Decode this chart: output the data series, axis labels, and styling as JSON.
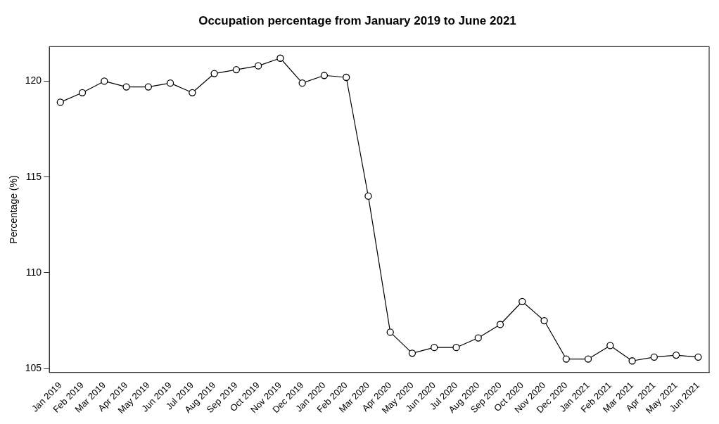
{
  "chart_data": {
    "type": "line",
    "title": "Occupation percentage from January 2019 to June 2021",
    "ylabel": "Percentage (%)",
    "categories": [
      "Jan 2019",
      "Feb 2019",
      "Mar 2019",
      "Apr 2019",
      "May 2019",
      "Jun 2019",
      "Jul 2019",
      "Aug 2019",
      "Sep 2019",
      "Oct 2019",
      "Nov 2019",
      "Dec 2019",
      "Jan 2020",
      "Feb 2020",
      "Mar 2020",
      "Apr 2020",
      "May 2020",
      "Jun 2020",
      "Jul 2020",
      "Aug 2020",
      "Sep 2020",
      "Oct 2020",
      "Nov 2020",
      "Dec 2020",
      "Jan 2021",
      "Feb 2021",
      "Mar 2021",
      "Apr 2021",
      "May 2021",
      "Jun 2021"
    ],
    "series": [
      {
        "color": "#000000",
        "values": [
          118.9,
          119.4,
          120.0,
          119.7,
          119.7,
          119.9,
          119.4,
          120.4,
          120.6,
          120.8,
          121.2,
          119.9,
          120.3,
          120.2,
          114.0,
          106.9,
          105.8,
          106.1,
          106.1,
          106.6,
          107.3,
          108.5,
          107.5,
          105.5,
          105.5,
          106.2,
          105.4,
          105.6,
          105.7,
          105.6
        ]
      }
    ],
    "ylim": [
      104.8,
      121.8
    ],
    "yticks": [
      105,
      110,
      115,
      120
    ],
    "grid": false,
    "legend": false,
    "marker": "circle",
    "line_style": "solid"
  }
}
